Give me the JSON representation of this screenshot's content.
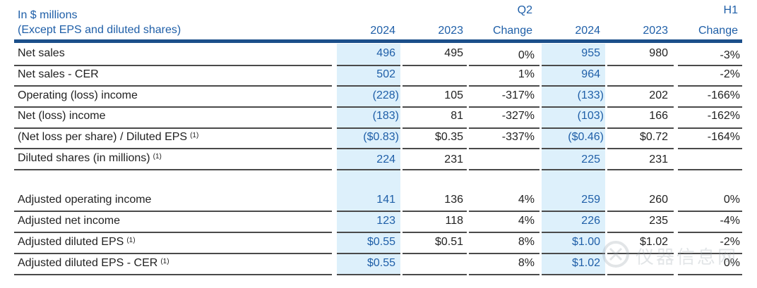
{
  "header": {
    "unit_line1": "In $ millions",
    "unit_line2": "(Except EPS and diluted shares)",
    "group_q2": "Q2",
    "group_h1": "H1",
    "col_2024": "2024",
    "col_2023": "2023",
    "col_change": "Change"
  },
  "rows": [
    {
      "label": "Net sales",
      "fn": "",
      "q2_2024": "496",
      "q2_2023": "495",
      "q2_change": "0%",
      "h1_2024": "955",
      "h1_2023": "980",
      "h1_change": "-3%"
    },
    {
      "label": "Net sales - CER",
      "fn": "",
      "q2_2024": "502",
      "q2_2023": "",
      "q2_change": "1%",
      "h1_2024": "964",
      "h1_2023": "",
      "h1_change": "-2%"
    },
    {
      "label": "Operating (loss) income",
      "fn": "",
      "q2_2024": "(228)",
      "q2_2023": "105",
      "q2_change": "-317%",
      "h1_2024": "(133)",
      "h1_2023": "202",
      "h1_change": "-166%"
    },
    {
      "label": "Net (loss) income",
      "fn": "",
      "q2_2024": "(183)",
      "q2_2023": "81",
      "q2_change": "-327%",
      "h1_2024": "(103)",
      "h1_2023": "166",
      "h1_change": "-162%"
    },
    {
      "label": "(Net loss per share) / Diluted EPS",
      "fn": "(1)",
      "q2_2024": "($0.83)",
      "q2_2023": "$0.35",
      "q2_change": "-337%",
      "h1_2024": "($0.46)",
      "h1_2023": "$0.72",
      "h1_change": "-164%"
    },
    {
      "label": "Diluted shares (in millions)",
      "fn": "(1)",
      "q2_2024": "224",
      "q2_2023": "231",
      "q2_change": "",
      "h1_2024": "225",
      "h1_2023": "231",
      "h1_change": ""
    },
    {
      "label": "",
      "fn": "",
      "q2_2024": "",
      "q2_2023": "",
      "q2_change": "",
      "h1_2024": "",
      "h1_2023": "",
      "h1_change": ""
    },
    {
      "label": "Adjusted operating income",
      "fn": "",
      "q2_2024": "141",
      "q2_2023": "136",
      "q2_change": "4%",
      "h1_2024": "259",
      "h1_2023": "260",
      "h1_change": "0%"
    },
    {
      "label": "Adjusted net income",
      "fn": "",
      "q2_2024": "123",
      "q2_2023": "118",
      "q2_change": "4%",
      "h1_2024": "226",
      "h1_2023": "235",
      "h1_change": "-4%"
    },
    {
      "label": "Adjusted diluted EPS",
      "fn": "(1)",
      "q2_2024": "$0.55",
      "q2_2023": "$0.51",
      "q2_change": "8%",
      "h1_2024": "$1.00",
      "h1_2023": "$1.02",
      "h1_change": "-2%"
    },
    {
      "label": "Adjusted diluted EPS - CER",
      "fn": "(1)",
      "q2_2024": "$0.55",
      "q2_2023": "",
      "q2_change": "8%",
      "h1_2024": "$1.02",
      "h1_2023": "",
      "h1_change": "0%"
    }
  ],
  "watermark": {
    "text": "仪器信息网"
  }
}
